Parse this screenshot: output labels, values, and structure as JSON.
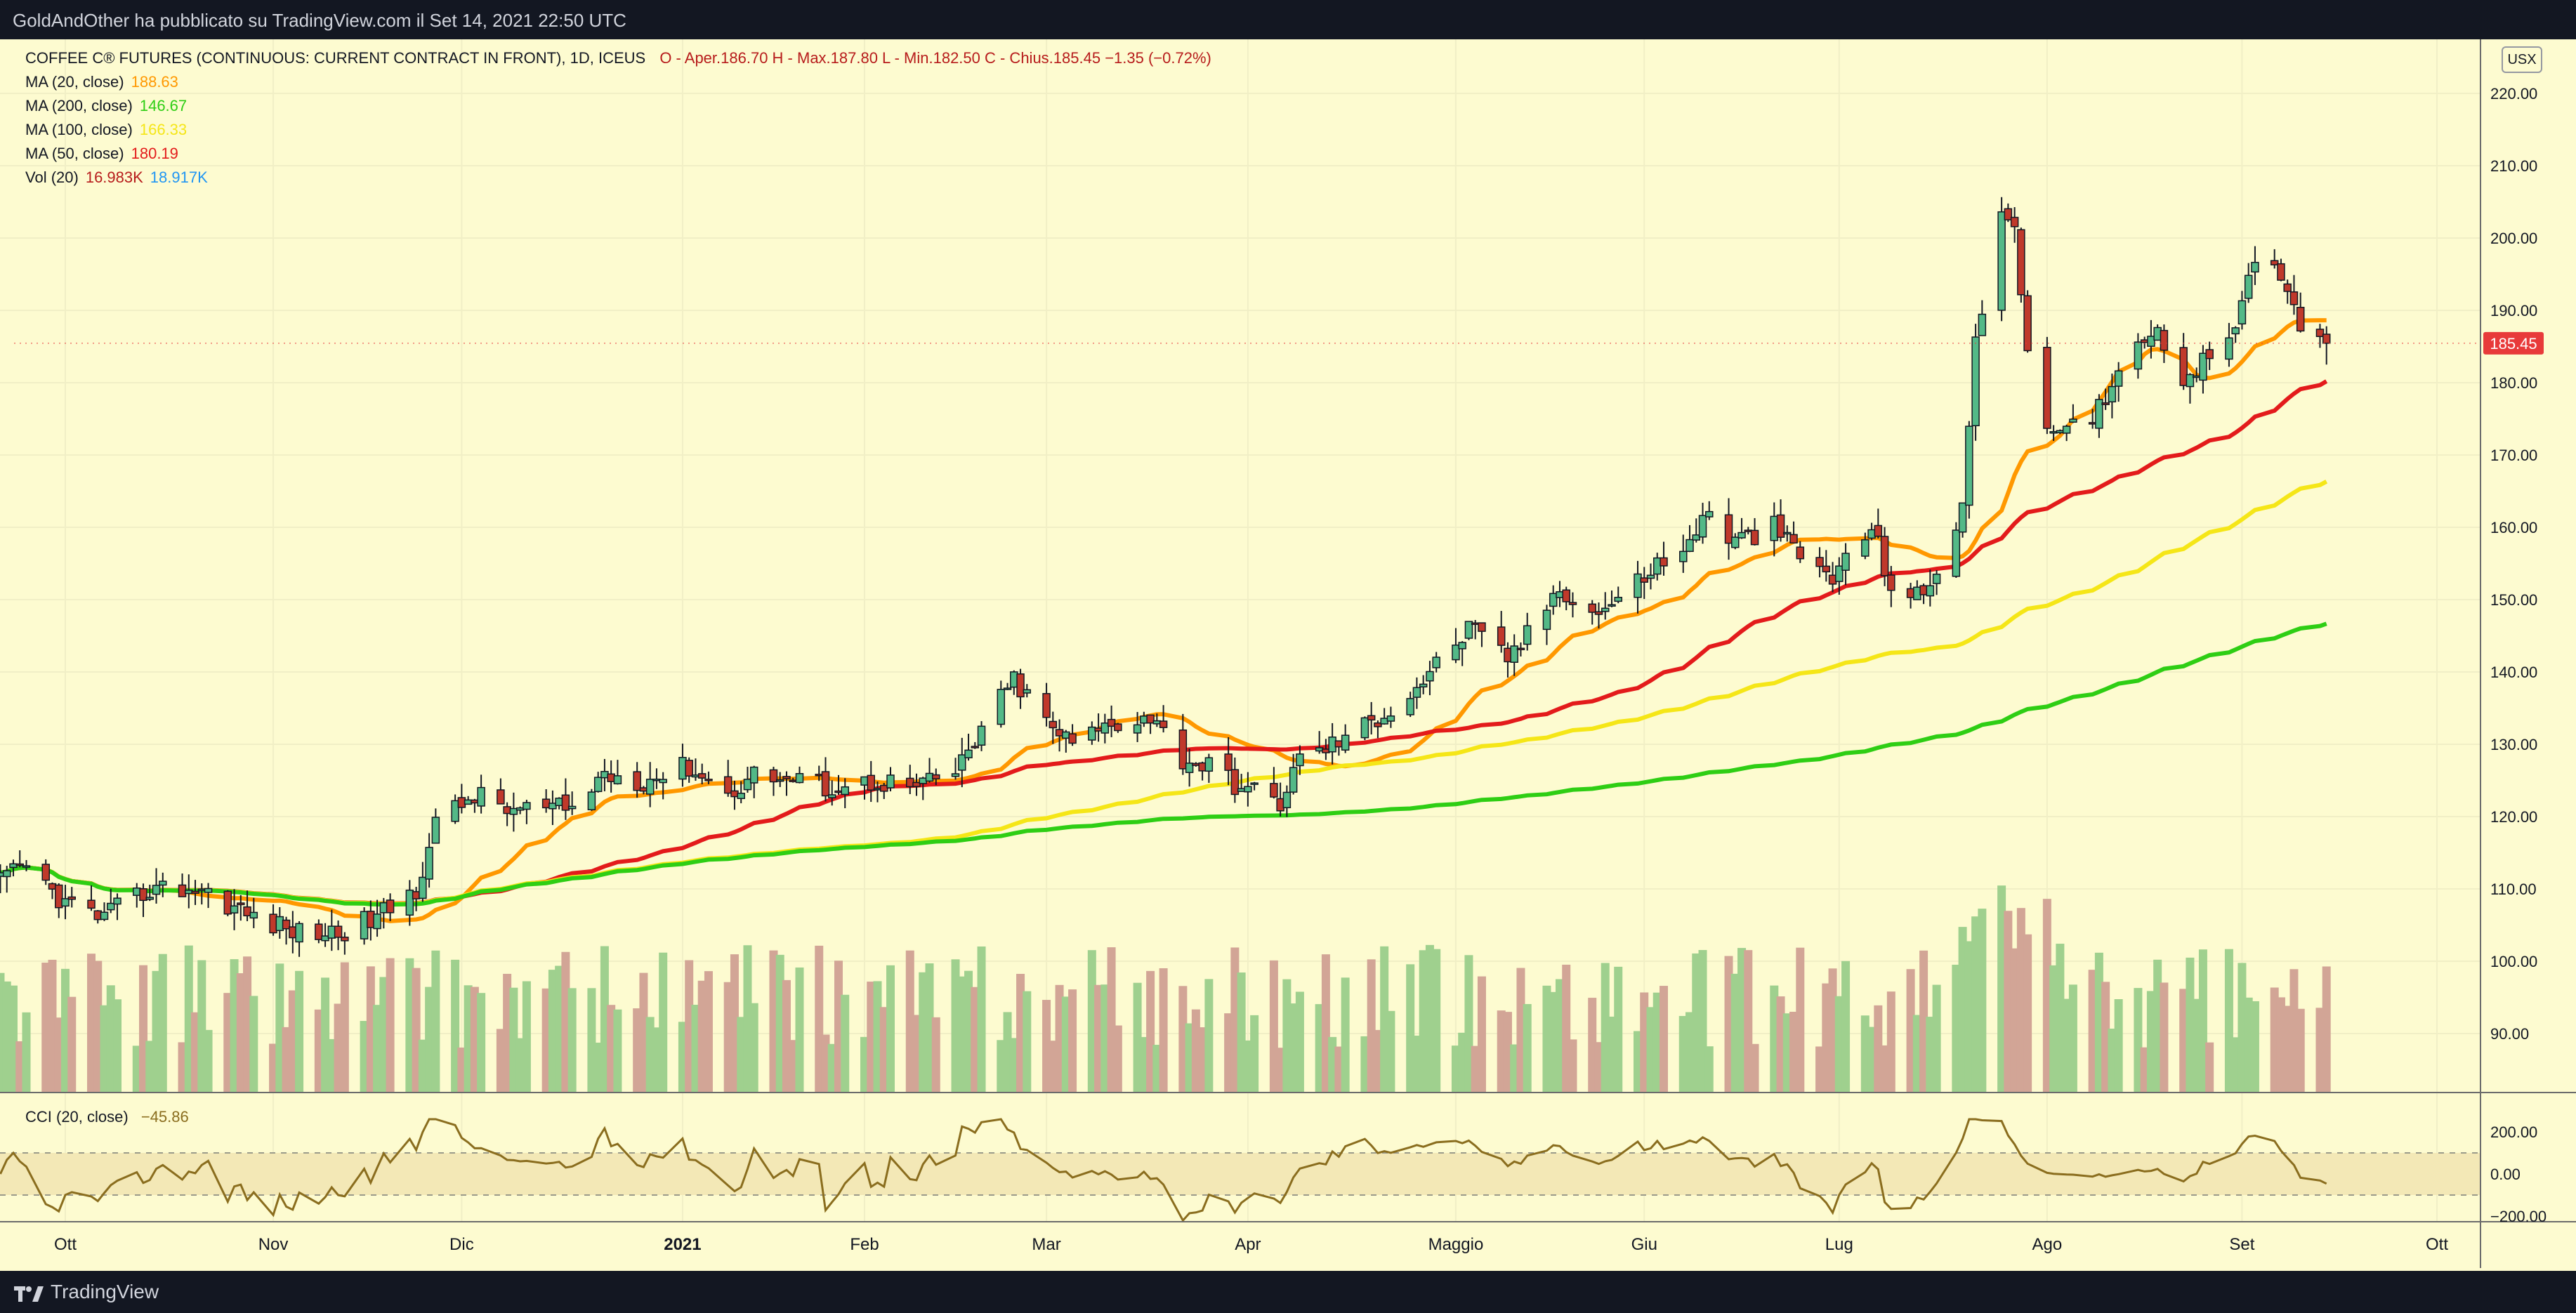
{
  "header": {
    "publish_info": "GoldAndOther ha pubblicato su TradingView.com il Set 14, 2021 22:50 UTC"
  },
  "footer": {
    "brand": "TradingView"
  },
  "currency_button": "USX",
  "legend": {
    "symbol": "COFFEE C® FUTURES (CONTINUOUS: CURRENT CONTRACT IN FRONT), 1D, ICEUS",
    "ohlc": "O - Aper.186.70  H - Max.187.80  L - Min.182.50  C - Chius.185.45  −1.35 (−0.72%)",
    "indicators": [
      {
        "label": "MA (20, close)",
        "value": "188.63",
        "color": "#ff9800"
      },
      {
        "label": "MA (200, close)",
        "value": "146.67",
        "color": "#2ece14"
      },
      {
        "label": "MA (100, close)",
        "value": "166.33",
        "color": "#f5e617"
      },
      {
        "label": "MA (50, close)",
        "value": "180.19",
        "color": "#e31b1b"
      }
    ],
    "volume": {
      "label": "Vol (20)",
      "value": "16.983K",
      "ma_value": "18.917K",
      "value_color": "#b71c1c",
      "ma_color": "#2196f3"
    },
    "cci": {
      "label": "CCI (20, close)",
      "value": "−45.86",
      "color": "#8a6d1e"
    }
  },
  "last_price_label": "185.45",
  "colors": {
    "background": "#fdfbd0",
    "up": "#26a69a",
    "up_body": "#53b987",
    "down": "#ef5350",
    "down_body": "#c0392b",
    "vol_up": "#9fd08e",
    "vol_down": "#d2a596",
    "grid": "#f1efc6",
    "price_tag": "#e83a3a"
  },
  "chart_data": [
    {
      "type": "candlestick",
      "title": "COFFEE C® FUTURES (CONTINUOUS: CURRENT CONTRACT IN FRONT), 1D, ICEUS",
      "y_ticks": [
        90,
        100,
        110,
        120,
        130,
        140,
        150,
        160,
        170,
        180,
        190,
        200,
        210,
        220
      ],
      "y_range": [
        82,
        222
      ],
      "x_labels": [
        {
          "label": "Ott",
          "date": "2020-10-01"
        },
        {
          "label": "Nov",
          "date": "2020-11-02"
        },
        {
          "label": "Dic",
          "date": "2020-12-01"
        },
        {
          "label": "2021",
          "date": "2021-01-04"
        },
        {
          "label": "Feb",
          "date": "2021-02-01"
        },
        {
          "label": "Mar",
          "date": "2021-03-01"
        },
        {
          "label": "Apr",
          "date": "2021-04-01"
        },
        {
          "label": "Maggio",
          "date": "2021-05-03"
        },
        {
          "label": "Giu",
          "date": "2021-06-01"
        },
        {
          "label": "Lug",
          "date": "2021-07-01"
        },
        {
          "label": "Ago",
          "date": "2021-08-02"
        },
        {
          "label": "Set",
          "date": "2021-09-01"
        },
        {
          "label": "Ott",
          "date": "2021-10-01"
        }
      ],
      "close_anchors": [
        [
          "2020-09-21",
          111
        ],
        [
          "2020-09-25",
          113
        ],
        [
          "2020-10-01",
          108
        ],
        [
          "2020-10-07",
          106
        ],
        [
          "2020-10-14",
          110
        ],
        [
          "2020-10-22",
          110
        ],
        [
          "2020-10-30",
          106
        ],
        [
          "2020-11-06",
          104
        ],
        [
          "2020-11-12",
          104
        ],
        [
          "2020-11-18",
          106
        ],
        [
          "2020-11-24",
          110
        ],
        [
          "2020-11-27",
          119
        ],
        [
          "2020-12-03",
          123
        ],
        [
          "2020-12-08",
          121
        ],
        [
          "2020-12-14",
          121
        ],
        [
          "2020-12-18",
          121
        ],
        [
          "2020-12-23",
          126
        ],
        [
          "2020-12-29",
          125
        ],
        [
          "2021-01-05",
          127
        ],
        [
          "2021-01-11",
          123
        ],
        [
          "2021-01-15",
          126
        ],
        [
          "2021-01-21",
          125
        ],
        [
          "2021-01-28",
          124
        ],
        [
          "2021-02-03",
          125
        ],
        [
          "2021-02-09",
          124
        ],
        [
          "2021-02-15",
          126
        ],
        [
          "2021-02-19",
          132
        ],
        [
          "2021-02-24",
          139
        ],
        [
          "2021-03-01",
          133
        ],
        [
          "2021-03-05",
          130
        ],
        [
          "2021-03-11",
          133
        ],
        [
          "2021-03-17",
          134
        ],
        [
          "2021-03-22",
          128
        ],
        [
          "2021-03-26",
          127
        ],
        [
          "2021-03-31",
          124
        ],
        [
          "2021-04-06",
          122
        ],
        [
          "2021-04-09",
          128
        ],
        [
          "2021-04-14",
          130
        ],
        [
          "2021-04-20",
          133
        ],
        [
          "2021-04-26",
          137
        ],
        [
          "2021-04-30",
          141
        ],
        [
          "2021-05-05",
          146
        ],
        [
          "2021-05-11",
          142
        ],
        [
          "2021-05-14",
          145
        ],
        [
          "2021-05-19",
          152
        ],
        [
          "2021-05-24",
          148
        ],
        [
          "2021-05-28",
          150
        ],
        [
          "2021-06-03",
          155
        ],
        [
          "2021-06-07",
          156
        ],
        [
          "2021-06-10",
          162
        ],
        [
          "2021-06-15",
          158
        ],
        [
          "2021-06-21",
          160
        ],
        [
          "2021-06-25",
          156
        ],
        [
          "2021-06-30",
          153
        ],
        [
          "2021-07-06",
          160
        ],
        [
          "2021-07-09",
          152
        ],
        [
          "2021-07-14",
          150
        ],
        [
          "2021-07-20",
          163
        ],
        [
          "2021-07-22",
          185
        ],
        [
          "2021-07-26",
          205
        ],
        [
          "2021-07-28",
          200
        ],
        [
          "2021-07-30",
          185
        ],
        [
          "2021-08-03",
          172
        ],
        [
          "2021-08-09",
          175
        ],
        [
          "2021-08-13",
          182
        ],
        [
          "2021-08-18",
          188
        ],
        [
          "2021-08-23",
          181
        ],
        [
          "2021-08-27",
          183
        ],
        [
          "2021-09-01",
          190
        ],
        [
          "2021-09-03",
          198
        ],
        [
          "2021-09-08",
          194
        ],
        [
          "2021-09-10",
          188
        ],
        [
          "2021-09-14",
          185.45
        ]
      ],
      "last_candle": {
        "date": "2021-09-14",
        "open": 186.7,
        "high": 187.8,
        "low": 182.5,
        "close": 185.45
      },
      "moving_averages": [
        {
          "name": "MA (20, close)",
          "last": 188.63,
          "color": "#ff9800"
        },
        {
          "name": "MA (50, close)",
          "last": 180.19,
          "color": "#e31b1b"
        },
        {
          "name": "MA (100, close)",
          "last": 166.33,
          "color": "#f5e617"
        },
        {
          "name": "MA (200, close)",
          "last": 146.67,
          "color": "#2ece14"
        }
      ],
      "volume": {
        "name": "Vol (20)",
        "last": 16983,
        "ma_last": 18917
      }
    },
    {
      "type": "line",
      "title": "CCI (20, close)",
      "y_ticks": [
        "200.00",
        "0.00",
        "−200.00"
      ],
      "y_tick_values": [
        200,
        0,
        -200
      ],
      "band": [
        100,
        -100
      ],
      "last": -45.86
    }
  ]
}
